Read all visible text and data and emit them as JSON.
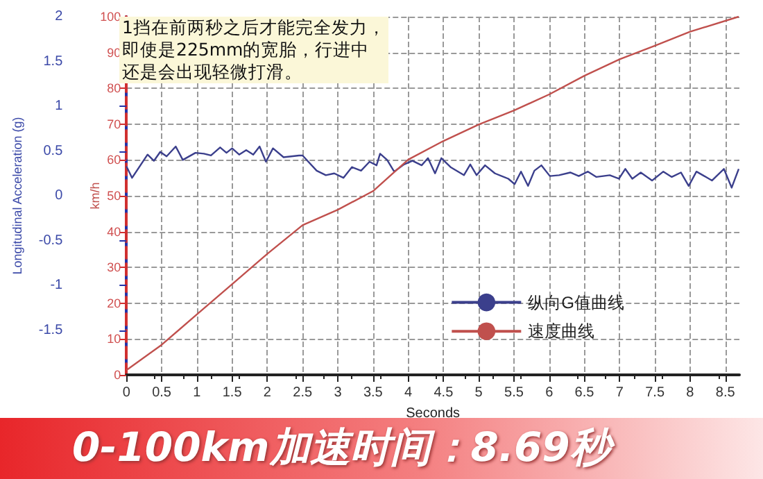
{
  "chart_data": {
    "type": "line",
    "xlabel": "Seconds",
    "ylabel": "Longitudinal Acceleration (g)",
    "y2label": "km/h",
    "xlim": [
      0,
      8.7
    ],
    "xticks": [
      0,
      0.5,
      1,
      1.5,
      2,
      2.5,
      3,
      3.5,
      4,
      4.5,
      5,
      5.5,
      6,
      6.5,
      7,
      7.5,
      8,
      8.5
    ],
    "ylim": [
      -2,
      2
    ],
    "yticks": [
      -1.5,
      -1,
      -0.5,
      0,
      0.5,
      1,
      1.5,
      2
    ],
    "y2lim": [
      0,
      100
    ],
    "y2ticks": [
      0,
      10,
      20,
      30,
      40,
      50,
      60,
      70,
      80,
      90,
      100
    ],
    "series": [
      {
        "name": "纵向G值曲线",
        "color": "#3b3f8c",
        "axis": "y",
        "x": [
          0,
          0.08,
          0.3,
          0.39,
          0.48,
          0.57,
          0.7,
          0.8,
          0.98,
          1.1,
          1.2,
          1.33,
          1.42,
          1.5,
          1.6,
          1.7,
          1.8,
          1.89,
          1.98,
          2.08,
          2.23,
          2.45,
          2.5,
          2.7,
          2.83,
          2.95,
          3.08,
          3.2,
          3.33,
          3.45,
          3.55,
          3.6,
          3.7,
          3.8,
          3.94,
          4.06,
          4.19,
          4.28,
          4.38,
          4.47,
          4.6,
          4.79,
          4.88,
          4.97,
          5.09,
          5.23,
          5.42,
          5.51,
          5.6,
          5.7,
          5.79,
          5.89,
          6.01,
          6.14,
          6.3,
          6.42,
          6.55,
          6.67,
          6.86,
          6.99,
          7.08,
          7.18,
          7.3,
          7.46,
          7.62,
          7.74,
          7.87,
          7.98,
          8.09,
          8.18,
          8.31,
          8.48,
          8.59,
          8.69
        ],
        "values": [
          0.33,
          0.2,
          0.46,
          0.39,
          0.49,
          0.44,
          0.55,
          0.4,
          0.48,
          0.47,
          0.45,
          0.54,
          0.48,
          0.53,
          0.46,
          0.51,
          0.46,
          0.55,
          0.38,
          0.53,
          0.43,
          0.45,
          0.45,
          0.28,
          0.23,
          0.25,
          0.2,
          0.32,
          0.28,
          0.38,
          0.34,
          0.47,
          0.4,
          0.27,
          0.35,
          0.39,
          0.34,
          0.42,
          0.25,
          0.42,
          0.32,
          0.23,
          0.35,
          0.23,
          0.34,
          0.25,
          0.19,
          0.13,
          0.27,
          0.11,
          0.28,
          0.34,
          0.22,
          0.23,
          0.26,
          0.22,
          0.27,
          0.21,
          0.23,
          0.19,
          0.3,
          0.19,
          0.26,
          0.17,
          0.27,
          0.21,
          0.26,
          0.11,
          0.27,
          0.23,
          0.17,
          0.3,
          0.09,
          0.3
        ]
      },
      {
        "name": "速度曲线",
        "color": "#c0504d",
        "axis": "y2",
        "x": [
          0,
          0.5,
          1,
          1.5,
          2,
          2.5,
          3,
          3.5,
          4,
          4.5,
          5,
          5.5,
          6,
          6.5,
          7,
          7.5,
          8,
          8.69
        ],
        "values": [
          1.3,
          8.4,
          16.9,
          25.3,
          33.8,
          41.8,
          46.1,
          51.3,
          60.1,
          65.3,
          69.9,
          73.8,
          78.3,
          83.5,
          88.1,
          91.9,
          95.8,
          100
        ]
      }
    ],
    "annotations": [
      "1挡在前两秒之后才能完全发力，即使是225mm的宽胎，行进中还是会出现轻微打滑。",
      "0-100km加速时间：8.69秒"
    ],
    "grid": true,
    "legend": "bottom right",
    "marker": "none",
    "line_style": "solid"
  }
}
